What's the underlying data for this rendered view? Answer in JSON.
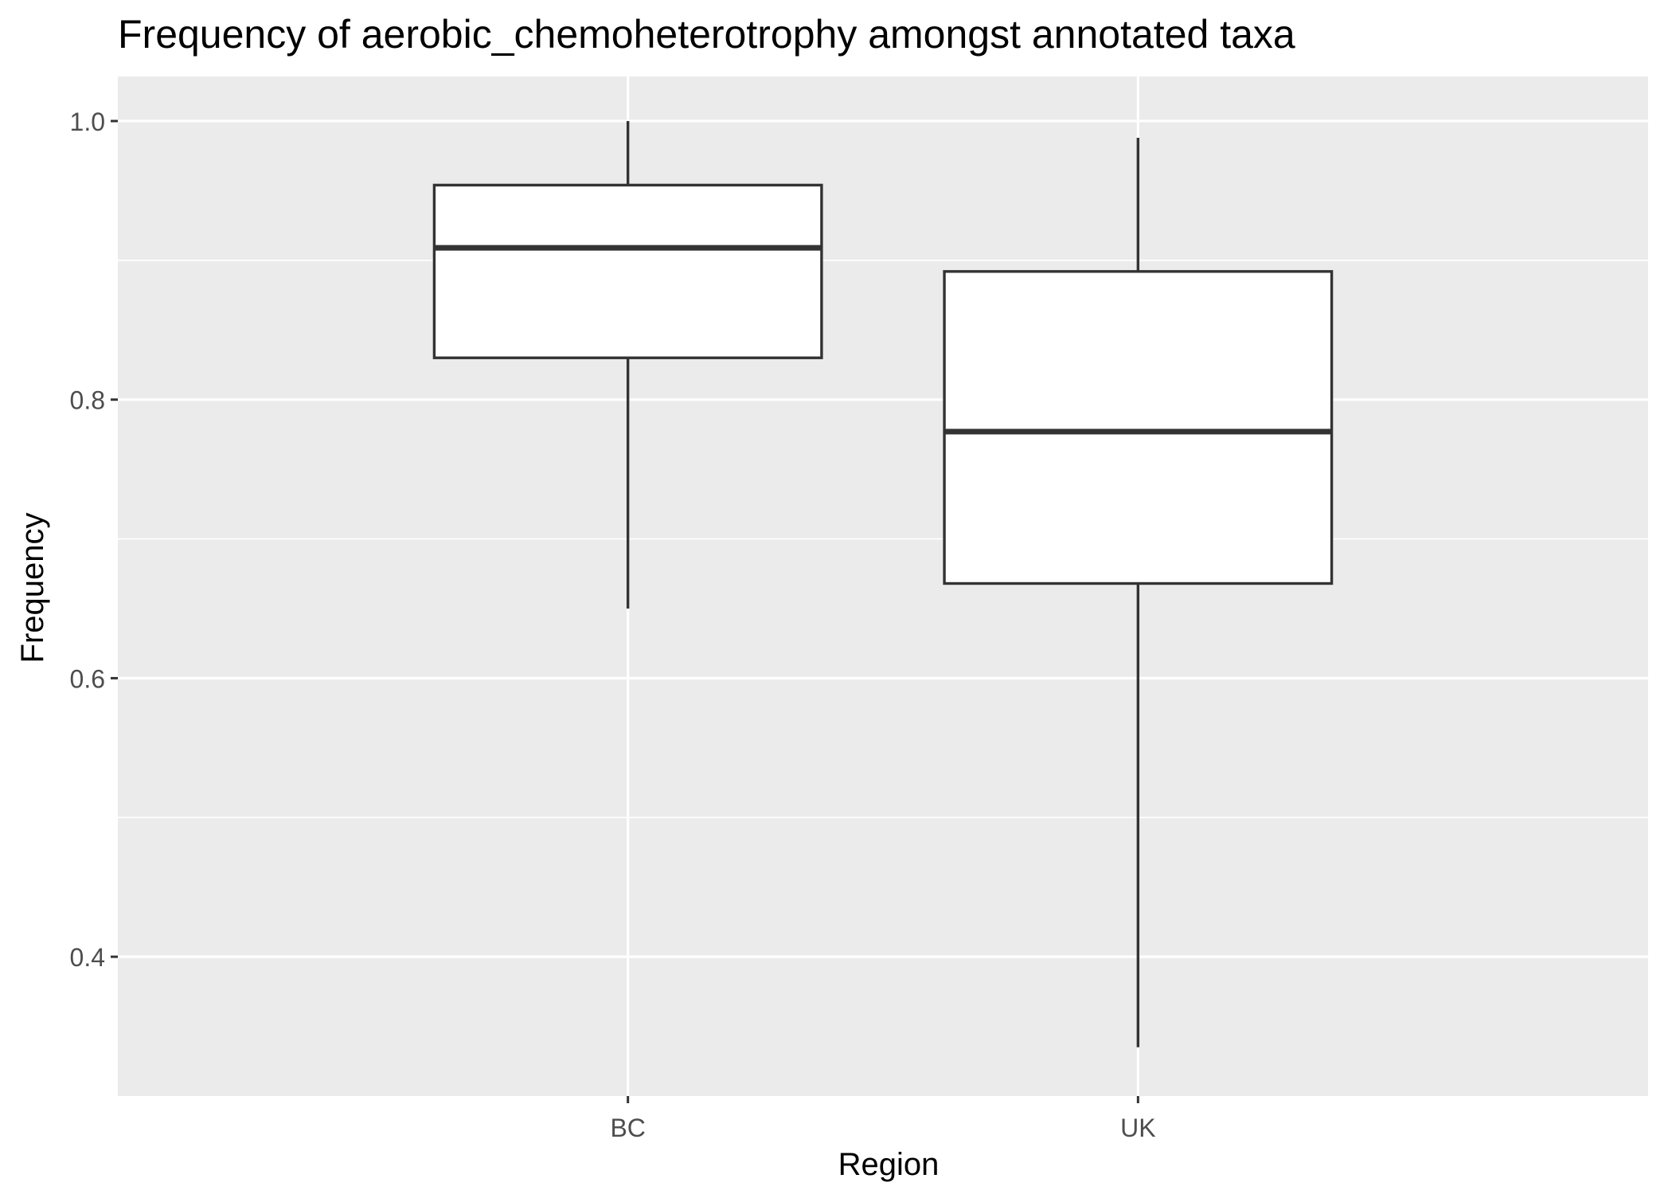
{
  "chart_data": {
    "type": "boxplot",
    "title": "Frequency of aerobic_chemoheterotrophy amongst annotated taxa",
    "xlabel": "Region",
    "ylabel": "Frequency",
    "categories": [
      "BC",
      "UK"
    ],
    "boxes": [
      {
        "category": "BC",
        "whisker_low": 0.65,
        "q1": 0.83,
        "median": 0.909,
        "q3": 0.954,
        "whisker_high": 1.0
      },
      {
        "category": "UK",
        "whisker_low": 0.335,
        "q1": 0.668,
        "median": 0.777,
        "q3": 0.892,
        "whisker_high": 0.988
      }
    ],
    "ylim": [
      0.3,
      1.032
    ],
    "y_ticks": [
      0.4,
      0.6,
      0.8,
      1.0
    ],
    "y_tick_labels": [
      "0.4",
      "0.6",
      "0.8",
      "1.0"
    ],
    "y_minor_ticks": [
      0.5,
      0.7,
      0.9
    ],
    "grid": true,
    "legend": "none",
    "colors": {
      "panel_background": "#EBEBEB",
      "grid_major": "#FFFFFF",
      "box_fill": "#FFFFFF",
      "box_stroke": "#333333",
      "tick_label": "#4D4D4D",
      "axis_title": "#000000"
    }
  }
}
